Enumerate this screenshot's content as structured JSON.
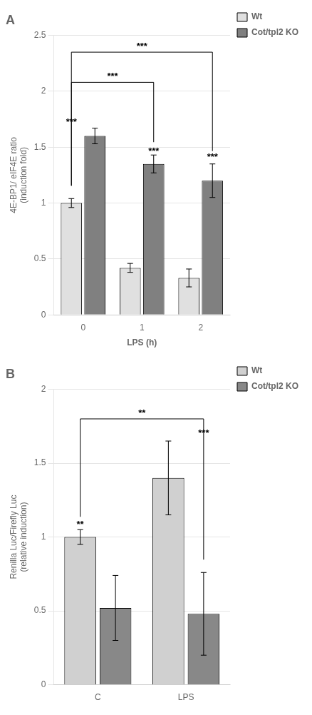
{
  "chart_data": [
    {
      "type": "bar",
      "title": "A",
      "categories": [
        "0",
        "1",
        "2"
      ],
      "xlabel": "LPS (h)",
      "ylabel": "4E-BP1/ eIF4E ratio\n(induction fold)",
      "series": [
        {
          "name": "Wt",
          "color": "#e0e0e0",
          "values": [
            1.0,
            0.42,
            0.33
          ],
          "errors": [
            0.04,
            0.04,
            0.08
          ]
        },
        {
          "name": "Cot/tpl2 KO",
          "color": "#808080",
          "values": [
            1.6,
            1.35,
            1.2
          ],
          "errors": [
            0.07,
            0.08,
            0.15
          ]
        }
      ],
      "ylim": [
        0,
        2.5
      ],
      "yticks": [
        0,
        0.5,
        1,
        1.5,
        2,
        2.5
      ],
      "grid": true,
      "legend": "right",
      "annotations": [
        {
          "text": "***",
          "category": "0",
          "series": "Wt",
          "y": 1.68
        },
        {
          "text": "***",
          "category": "1",
          "series": "Cot/tpl2 KO",
          "y": 1.42
        },
        {
          "text": "***",
          "category": "2",
          "series": "Cot/tpl2 KO",
          "y": 1.37
        },
        {
          "text": "***",
          "from": {
            "category": "0",
            "series": "Wt"
          },
          "to": {
            "category": "1",
            "series": "Cot/tpl2 KO"
          },
          "y": 2.08
        },
        {
          "text": "***",
          "from": {
            "category": "0",
            "series": "Wt"
          },
          "to": {
            "category": "2",
            "series": "Cot/tpl2 KO"
          },
          "y": 2.35
        }
      ]
    },
    {
      "type": "bar",
      "title": "B",
      "categories": [
        "C",
        "LPS"
      ],
      "ylabel": "Renilla Luc/Firefly Luc\n(relative induction)",
      "series": [
        {
          "name": "Wt",
          "color": "#d0d0d0",
          "values": [
            1.0,
            1.4
          ],
          "errors": [
            0.05,
            0.25
          ]
        },
        {
          "name": "Cot/tpl2 KO",
          "color": "#888888",
          "values": [
            0.52,
            0.48
          ],
          "errors": [
            0.22,
            0.28
          ]
        }
      ],
      "ylim": [
        0,
        2
      ],
      "yticks": [
        0,
        0.5,
        1,
        1.5,
        2
      ],
      "grid": true,
      "legend": "right",
      "annotations": [
        {
          "text": "**",
          "category": "C",
          "series": "Wt",
          "y": 1.05
        },
        {
          "text": "***",
          "category": "LPS",
          "series": "Cot/tpl2 KO",
          "y": 1.67
        },
        {
          "text": "**",
          "from": {
            "category": "C",
            "series": "Wt"
          },
          "to": {
            "category": "LPS",
            "series": "Cot/tpl2 KO"
          },
          "y": 1.8
        }
      ]
    }
  ]
}
